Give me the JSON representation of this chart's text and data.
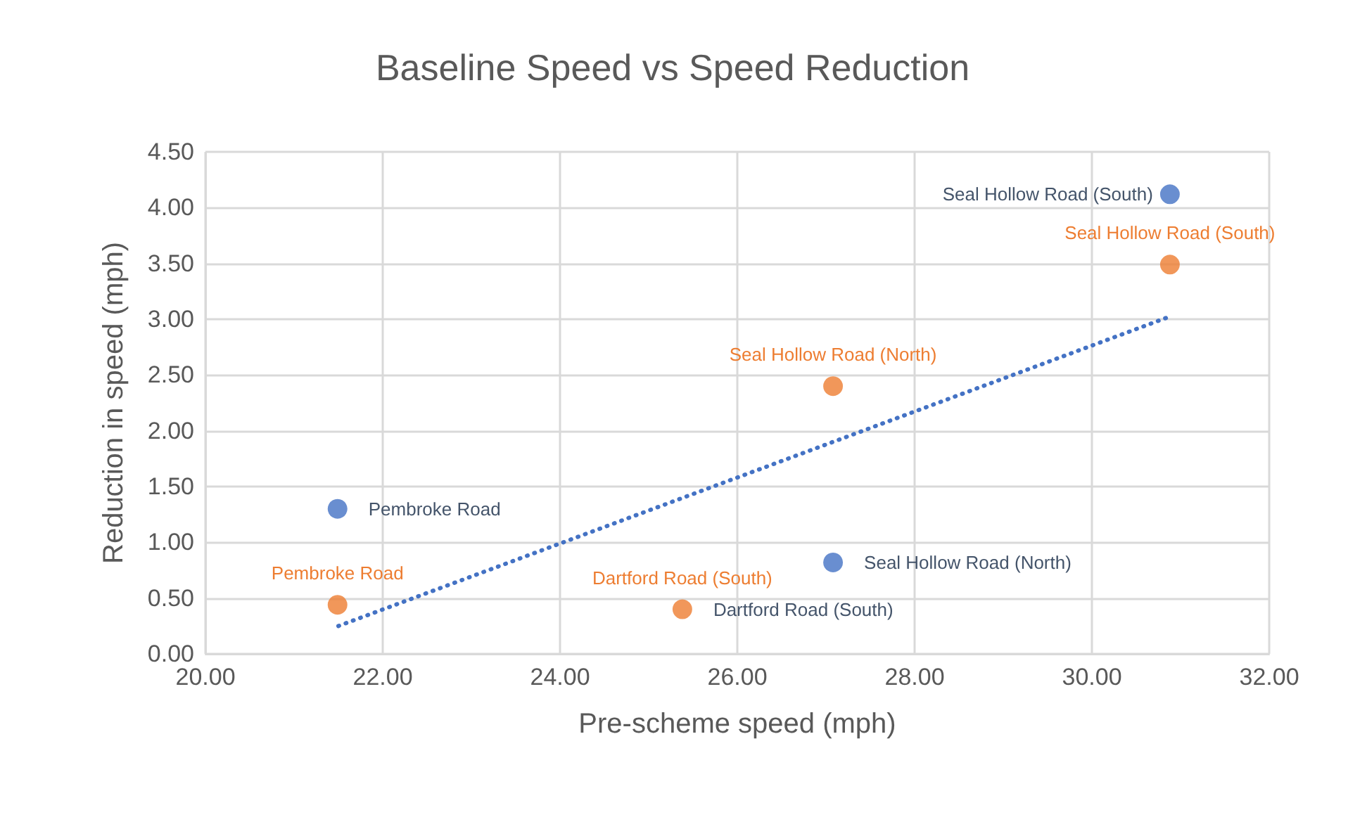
{
  "chart_data": {
    "type": "scatter",
    "title": "Baseline Speed vs Speed Reduction",
    "xlabel": "Pre-scheme speed (mph)",
    "ylabel": "Reduction in speed (mph)",
    "series": [
      {
        "color": "#4472c4",
        "x": [
          21.49,
          25.38,
          27.08,
          30.88
        ],
        "values": [
          1.3,
          null,
          0.82,
          4.12
        ]
      },
      {
        "color": "#ed7d31",
        "x": [
          21.49,
          25.38,
          27.08,
          30.88
        ],
        "values": [
          0.44,
          0.4,
          2.4,
          3.49
        ]
      },
      {
        "type": "line",
        "color": "#4472c4",
        "line_style": "dotted",
        "marker": "none",
        "x": [
          21.5,
          30.9
        ],
        "values": [
          0.25,
          3.03
        ]
      }
    ],
    "annotations": [
      {
        "text": "Pembroke Road",
        "x": 21.49,
        "y": 1.3
      },
      {
        "text": "Dartford Road (South)",
        "x": 25.38,
        "y": 0.4
      },
      {
        "text": "Seal Hollow Road (North)",
        "x": 27.08,
        "y": 0.82
      },
      {
        "text": "Seal Hollow Road (South)",
        "x": 30.88,
        "y": 4.12
      },
      {
        "text": "Pembroke Road",
        "x": 21.49,
        "y": 0.44
      },
      {
        "text": "Dartford Road (South)",
        "x": 25.38,
        "y": 0.4
      },
      {
        "text": "Seal Hollow Road (North)",
        "x": 27.08,
        "y": 2.4
      },
      {
        "text": "Seal Hollow Road (South)",
        "x": 30.88,
        "y": 3.49
      }
    ],
    "xlim": [
      20,
      32
    ],
    "xticks": [
      {
        "value": 20,
        "label": "20.00"
      },
      {
        "value": 22,
        "label": "22.00"
      },
      {
        "value": 24,
        "label": "24.00"
      },
      {
        "value": 26,
        "label": "26.00"
      },
      {
        "value": 28,
        "label": "28.00"
      },
      {
        "value": 30,
        "label": "30.00"
      },
      {
        "value": 32,
        "label": "32.00"
      }
    ],
    "ylim": [
      0,
      4.5
    ],
    "yticks": [
      {
        "value": 0,
        "label": "0.00"
      },
      {
        "value": 0.5,
        "label": "0.50"
      },
      {
        "value": 1,
        "label": "1.00"
      },
      {
        "value": 1.5,
        "label": "1.50"
      },
      {
        "value": 2,
        "label": "2.00"
      },
      {
        "value": 2.5,
        "label": "2.50"
      },
      {
        "value": 3,
        "label": "3.00"
      },
      {
        "value": 3.5,
        "label": "3.50"
      },
      {
        "value": 4,
        "label": "4.00"
      },
      {
        "value": 4.5,
        "label": "4.50"
      }
    ],
    "grid": true,
    "marker": "circle"
  }
}
